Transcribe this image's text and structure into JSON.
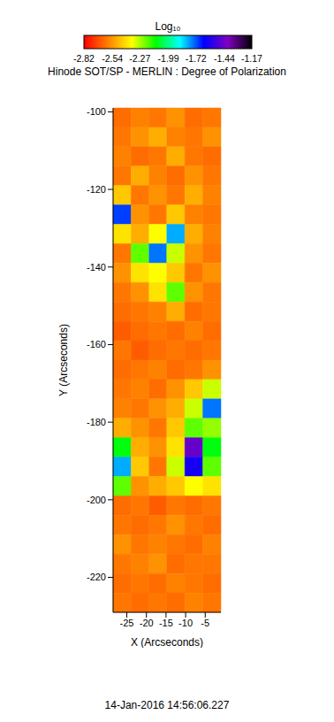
{
  "chart_data": {
    "type": "heatmap",
    "title": "Hinode SOT/SP - MERLIN : Degree of Polarization",
    "xlabel": "X (Arcseconds)",
    "ylabel": "Y (Arcseconds)",
    "annotation": "14-Jan-2016 14:56:06.227",
    "xlim": [
      -28.5,
      -1
    ],
    "ylim": [
      -229,
      -99
    ],
    "xticks": [
      -25,
      -20,
      -15,
      -10,
      -5
    ],
    "yticks": [
      -220,
      -200,
      -180,
      -160,
      -140,
      -120,
      -100
    ],
    "x_bins": [
      -28.5,
      -23.9,
      -19.3,
      -14.8,
      -10.2,
      -5.6,
      -1
    ],
    "y_bins": [
      -99,
      -104,
      -109,
      -114,
      -119,
      -124,
      -129,
      -134,
      -139,
      -144,
      -149,
      -154,
      -159,
      -164,
      -169,
      -174,
      -179,
      -184,
      -189,
      -194,
      -199,
      -204,
      -209,
      -214,
      -219,
      -224,
      -229
    ],
    "cells": [
      [
        -2.62,
        -2.58,
        -2.6,
        -2.55,
        -2.62,
        -2.6
      ],
      [
        -2.6,
        -2.55,
        -2.5,
        -2.58,
        -2.6,
        -2.55
      ],
      [
        -2.58,
        -2.62,
        -2.6,
        -2.5,
        -2.6,
        -2.62
      ],
      [
        -2.6,
        -2.5,
        -2.58,
        -2.62,
        -2.55,
        -2.6
      ],
      [
        -2.45,
        -2.6,
        -2.55,
        -2.6,
        -2.5,
        -2.58
      ],
      [
        -1.7,
        -2.55,
        -2.6,
        -2.45,
        -2.58,
        -2.6
      ],
      [
        -2.4,
        -2.5,
        -2.35,
        -1.8,
        -2.5,
        -2.58
      ],
      [
        -2.6,
        -2.2,
        -1.75,
        -2.3,
        -2.55,
        -2.6
      ],
      [
        -2.55,
        -2.4,
        -2.35,
        -2.45,
        -2.6,
        -2.55
      ],
      [
        -2.6,
        -2.55,
        -2.4,
        -2.2,
        -2.55,
        -2.6
      ],
      [
        -2.62,
        -2.6,
        -2.58,
        -2.5,
        -2.62,
        -2.6
      ],
      [
        -2.65,
        -2.62,
        -2.6,
        -2.62,
        -2.58,
        -2.62
      ],
      [
        -2.6,
        -2.65,
        -2.62,
        -2.6,
        -2.62,
        -2.6
      ],
      [
        -2.62,
        -2.6,
        -2.58,
        -2.62,
        -2.6,
        -2.55
      ],
      [
        -2.6,
        -2.58,
        -2.62,
        -2.55,
        -2.45,
        -2.3
      ],
      [
        -2.58,
        -2.6,
        -2.55,
        -2.5,
        -2.3,
        -1.75
      ],
      [
        -2.5,
        -2.55,
        -2.6,
        -2.45,
        -2.2,
        -2.25
      ],
      [
        -2.1,
        -2.5,
        -2.55,
        -2.4,
        -1.45,
        -2.1
      ],
      [
        -1.8,
        -2.45,
        -2.6,
        -2.3,
        -1.6,
        -2.2
      ],
      [
        -2.2,
        -2.55,
        -2.5,
        -2.45,
        -2.35,
        -2.4
      ],
      [
        -2.62,
        -2.6,
        -2.65,
        -2.6,
        -2.62,
        -2.6
      ],
      [
        -2.6,
        -2.62,
        -2.6,
        -2.55,
        -2.6,
        -2.62
      ],
      [
        -2.55,
        -2.6,
        -2.58,
        -2.6,
        -2.62,
        -2.58
      ],
      [
        -2.6,
        -2.58,
        -2.55,
        -2.62,
        -2.6,
        -2.6
      ],
      [
        -2.62,
        -2.6,
        -2.62,
        -2.58,
        -2.6,
        -2.62
      ],
      [
        -2.6,
        -2.62,
        -2.6,
        -2.62,
        -2.58,
        -2.6
      ]
    ],
    "colorbar": {
      "label": "Log₁₀",
      "range": [
        -2.82,
        -1.17
      ],
      "ticks": [
        -2.82,
        -2.54,
        -2.27,
        -1.99,
        -1.72,
        -1.44,
        -1.17
      ],
      "colors": [
        "#ff0000",
        "#ff7f00",
        "#ffff00",
        "#00ff00",
        "#00ffff",
        "#0000ff",
        "#8000c0",
        "#000000"
      ]
    }
  }
}
